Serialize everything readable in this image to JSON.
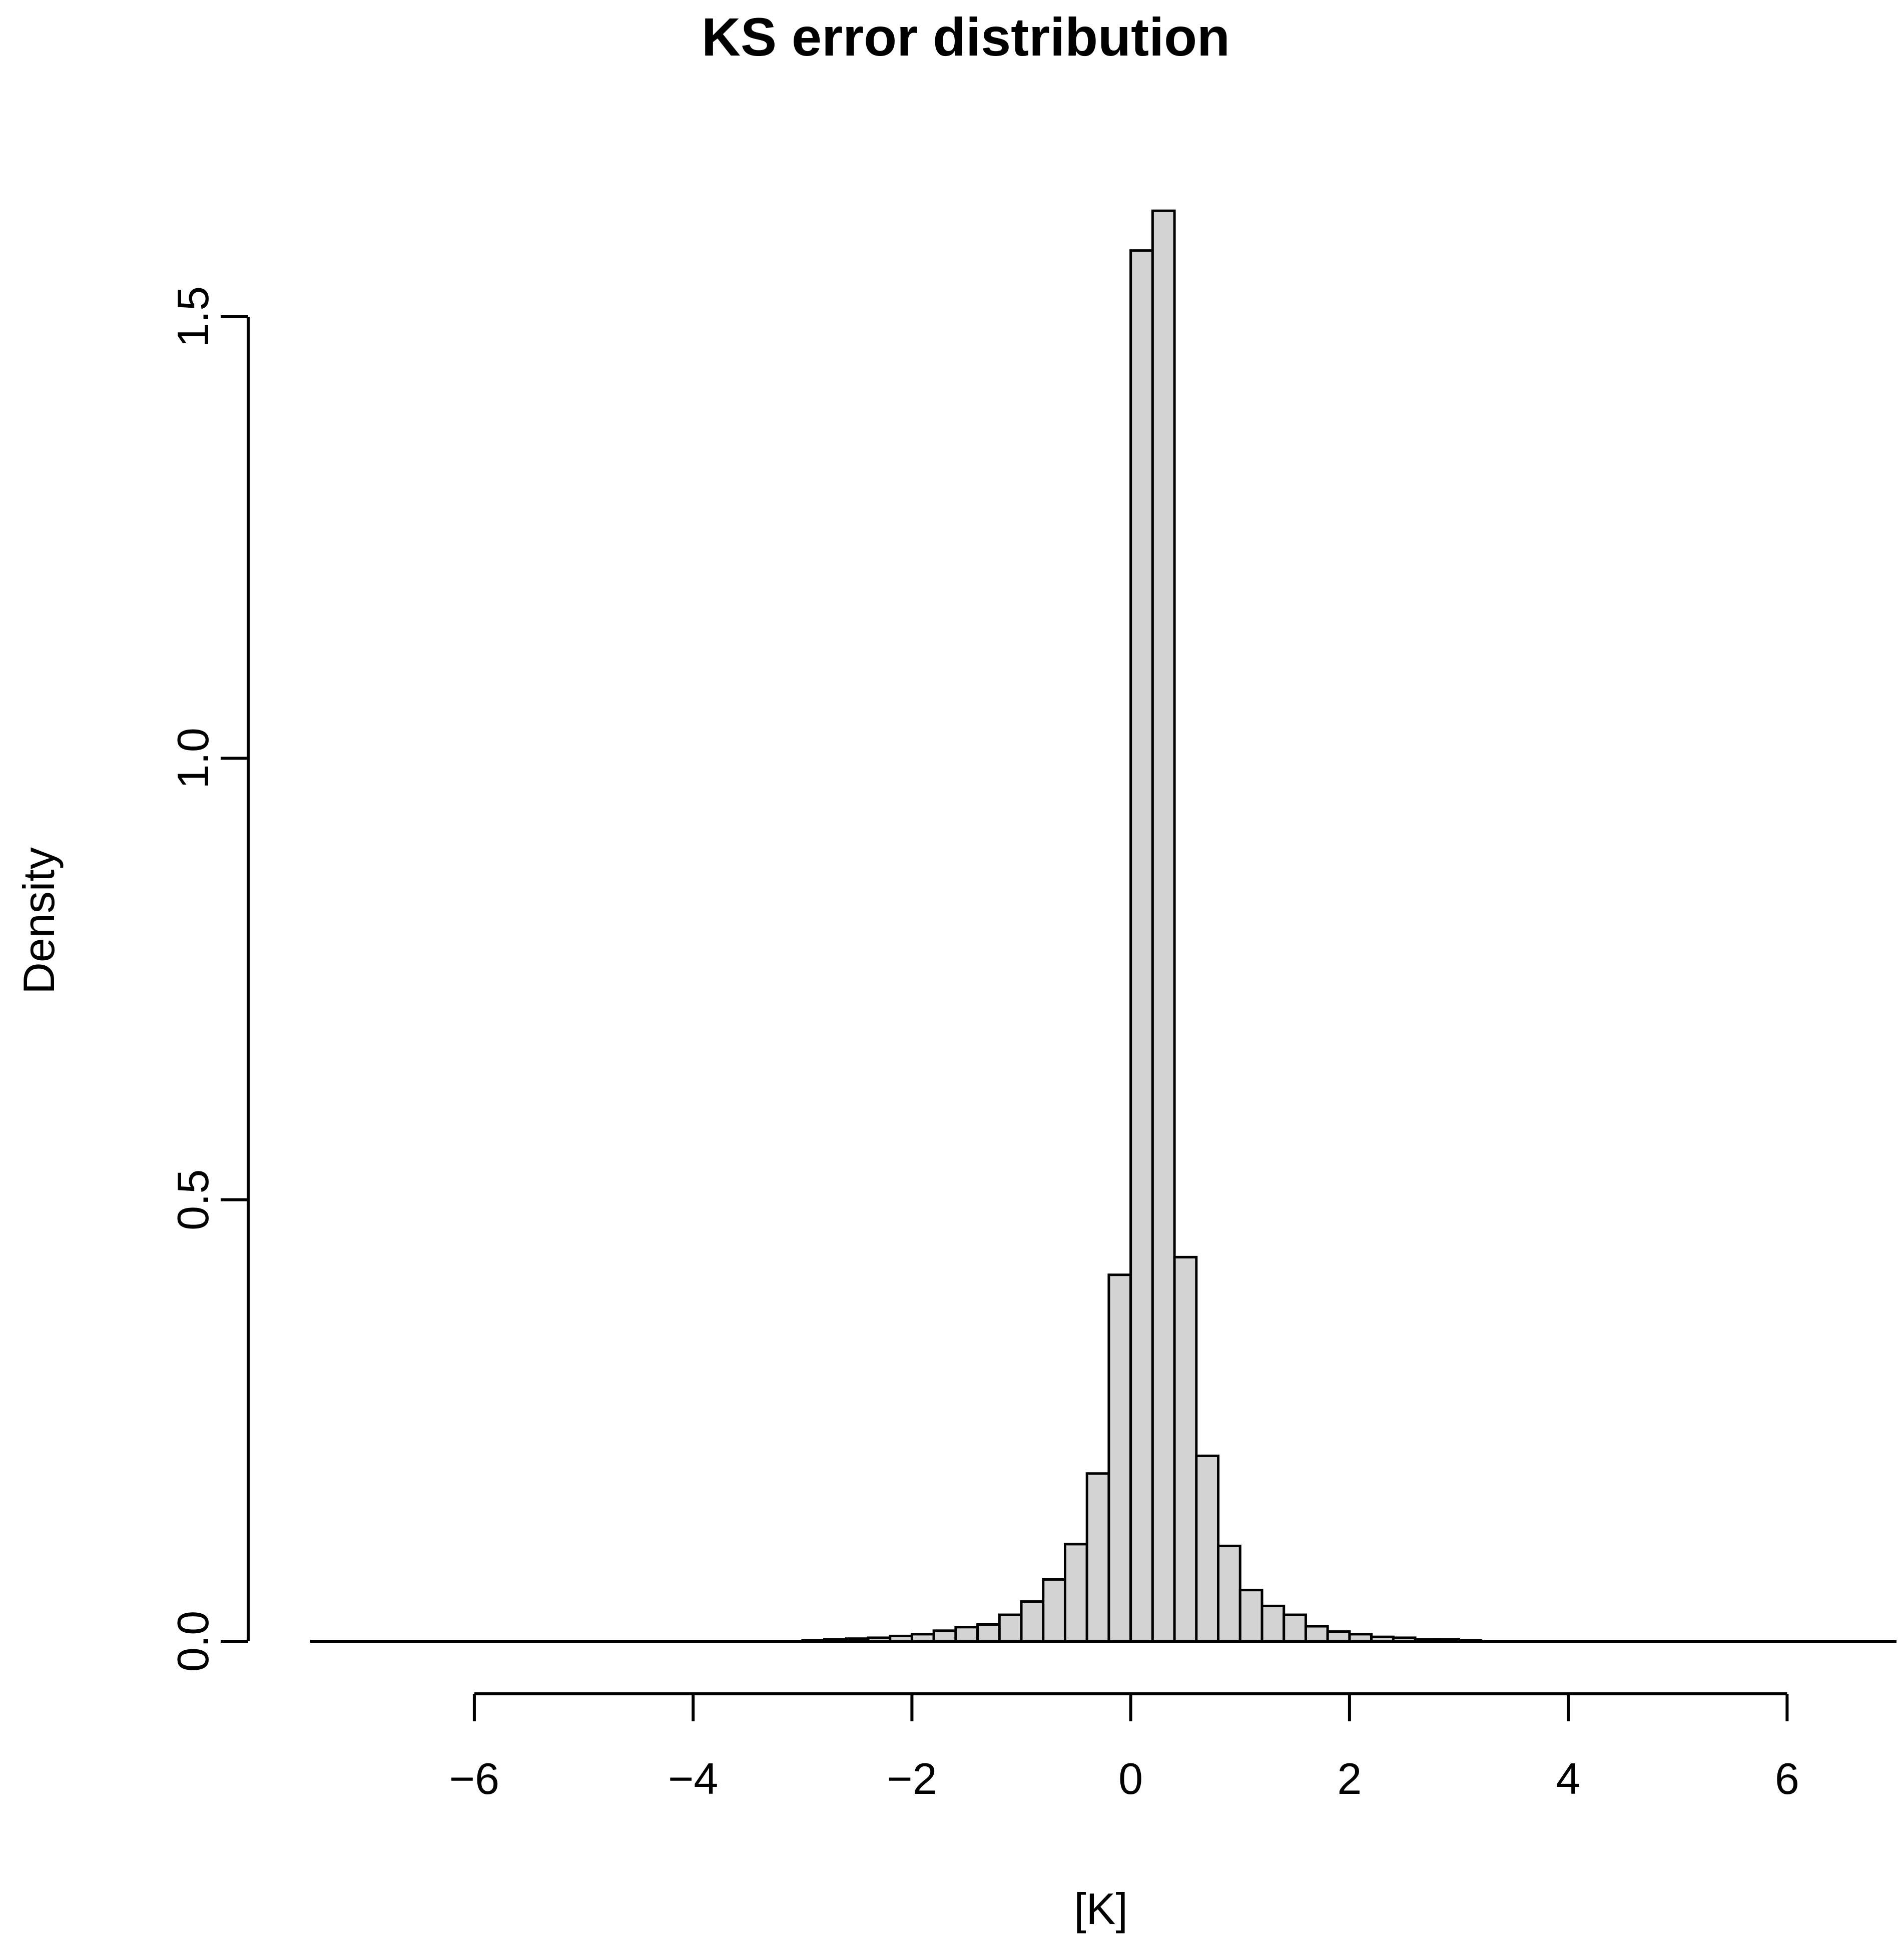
{
  "chart_data": {
    "type": "bar",
    "subtype": "histogram",
    "title": "KS error distribution",
    "xlabel": "[K]",
    "ylabel": "Density",
    "xlim": [
      -7.5,
      7.0
    ],
    "ylim": [
      0,
      1.6
    ],
    "x_ticks": [
      -6,
      -4,
      -2,
      0,
      2,
      4,
      6
    ],
    "x_tick_labels": [
      "−6",
      "−4",
      "−2",
      "0",
      "2",
      "4",
      "6"
    ],
    "y_ticks": [
      0.0,
      0.5,
      1.0,
      1.5
    ],
    "y_tick_labels": [
      "0.0",
      "0.5",
      "1.0",
      "1.5"
    ],
    "grid": false,
    "legend": "none",
    "colors": {
      "bar_fill": "#d3d3d3",
      "bar_edge": "#000000"
    },
    "bin_width": 0.2,
    "bins_left_edge": [
      -3.0,
      -2.8,
      -2.6,
      -2.4,
      -2.2,
      -2.0,
      -1.8,
      -1.6,
      -1.4,
      -1.2,
      -1.0,
      -0.8,
      -0.6,
      -0.4,
      -0.2,
      0.0,
      0.2,
      0.4,
      0.6,
      0.8,
      1.0,
      1.2,
      1.4,
      1.6,
      1.8,
      2.0,
      2.2,
      2.4,
      2.6,
      2.8,
      3.0
    ],
    "values": [
      0.001,
      0.002,
      0.003,
      0.004,
      0.006,
      0.008,
      0.012,
      0.016,
      0.019,
      0.03,
      0.045,
      0.07,
      0.11,
      0.19,
      0.415,
      1.575,
      1.62,
      0.435,
      0.21,
      0.108,
      0.058,
      0.04,
      0.03,
      0.017,
      0.011,
      0.008,
      0.005,
      0.004,
      0.002,
      0.002,
      0.001
    ]
  }
}
